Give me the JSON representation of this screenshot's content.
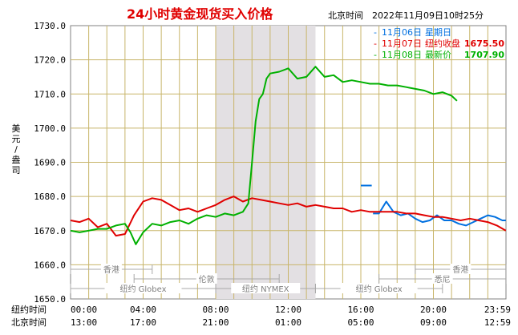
{
  "header": {
    "title": "24小时黄金现货买入价格",
    "location_time": "北京时间　2022年11月09日10时25分"
  },
  "legend": [
    {
      "dash": "-",
      "date": "11月06日",
      "label": "星期日",
      "value": "",
      "color": "#0070e0"
    },
    {
      "dash": "-",
      "date": "11月07日",
      "label": "纽约收盘",
      "value": "1675.50",
      "color": "#e00000"
    },
    {
      "dash": "-",
      "date": "11月08日",
      "label": "最新价",
      "value": "1707.90",
      "color": "#00b000"
    }
  ],
  "y_axis_label_chars": [
    "美",
    "元",
    "/",
    "盎",
    "司"
  ],
  "time_rows": [
    {
      "label": "纽约时间",
      "ticks": [
        "00:00",
        "04:00",
        "08:00",
        "12:00",
        "16:00",
        "20:00",
        "23:59"
      ]
    },
    {
      "label": "北京时间",
      "ticks": [
        "13:00",
        "17:00",
        "21:00",
        "01:00",
        "05:00",
        "09:00",
        "12:59"
      ]
    }
  ],
  "markets": [
    {
      "name": "香港",
      "start": 0,
      "end": 4.5,
      "row": 0
    },
    {
      "name": "伦敦",
      "start": 3.5,
      "end": 11.5,
      "row": 1
    },
    {
      "name": "纽约 Globex",
      "start": 0,
      "end": 8,
      "row": 2
    },
    {
      "name": "纽约 NYMEX",
      "start": 8,
      "end": 13.5,
      "row": 2
    },
    {
      "name": "纽约 Globex",
      "start": 13.5,
      "end": 20.5,
      "row": 2
    },
    {
      "name": "香港",
      "start": 19,
      "end": 23.99,
      "row": 0
    },
    {
      "name": "悉尼",
      "start": 17,
      "end": 23.99,
      "row": 1
    }
  ],
  "chart_data": {
    "type": "line",
    "title": "24小时黄金现货买入价格",
    "ylabel": "美元/盎司",
    "xlabel": "纽约时间",
    "xlim": [
      0,
      24
    ],
    "ylim": [
      1650,
      1730
    ],
    "yticks": [
      "1650.0",
      "1660.0",
      "1670.0",
      "1680.0",
      "1690.0",
      "1700.0",
      "1710.0",
      "1720.0",
      "1730.0"
    ],
    "highlight_band": [
      8,
      13.5
    ],
    "grid": true,
    "legend_position": "top-right",
    "series": [
      {
        "name": "11月06日",
        "color": "#0070e0",
        "x": [
          16.67,
          17.0,
          17.4,
          17.8,
          18.2,
          18.6,
          19.0,
          19.4,
          19.8,
          20.2,
          20.6,
          21.0,
          21.4,
          21.8,
          22.2,
          22.6,
          23.0,
          23.4,
          23.8,
          23.99
        ],
        "y": [
          1675.0,
          1675.0,
          1678.5,
          1675.5,
          1674.5,
          1675.0,
          1673.5,
          1672.5,
          1673.0,
          1674.5,
          1673.0,
          1673.0,
          1672.0,
          1671.5,
          1672.5,
          1673.5,
          1674.5,
          1674.0,
          1673.0,
          1673.0
        ],
        "segments": [
          {
            "x": [
              16.0,
              16.6
            ],
            "y": [
              1683.2,
              1683.2
            ]
          }
        ]
      },
      {
        "name": "11月07日",
        "color": "#e00000",
        "x": [
          0.0,
          0.5,
          1.0,
          1.5,
          2.0,
          2.5,
          3.0,
          3.5,
          4.0,
          4.5,
          5.0,
          5.5,
          6.0,
          6.5,
          7.0,
          7.5,
          8.0,
          8.5,
          9.0,
          9.5,
          10.0,
          10.5,
          11.0,
          11.5,
          12.0,
          12.5,
          13.0,
          13.5,
          14.0,
          14.5,
          15.0,
          15.5,
          16.0,
          16.5,
          17.0,
          17.5,
          18.0,
          18.5,
          19.0,
          19.5,
          20.0,
          20.5,
          21.0,
          21.5,
          22.0,
          22.5,
          23.0,
          23.5,
          23.99
        ],
        "y": [
          1673.0,
          1672.5,
          1673.5,
          1671.0,
          1672.0,
          1668.5,
          1669.0,
          1674.5,
          1678.5,
          1679.5,
          1679.0,
          1677.5,
          1676.0,
          1676.5,
          1675.5,
          1676.5,
          1677.5,
          1679.0,
          1680.0,
          1678.5,
          1679.5,
          1679.0,
          1678.5,
          1678.0,
          1677.5,
          1678.0,
          1677.0,
          1677.5,
          1677.0,
          1676.5,
          1676.5,
          1675.5,
          1676.0,
          1675.5,
          1675.5,
          1675.5,
          1675.5,
          1675.0,
          1675.0,
          1674.5,
          1674.0,
          1674.0,
          1673.5,
          1673.0,
          1673.5,
          1673.0,
          1672.5,
          1671.5,
          1670.0
        ]
      },
      {
        "name": "11月08日",
        "color": "#00b000",
        "x": [
          0.0,
          0.5,
          1.0,
          1.5,
          2.0,
          2.5,
          3.0,
          3.3,
          3.6,
          4.0,
          4.5,
          5.0,
          5.5,
          6.0,
          6.5,
          7.0,
          7.5,
          8.0,
          8.5,
          9.0,
          9.5,
          9.8,
          10.0,
          10.2,
          10.4,
          10.6,
          10.8,
          11.0,
          11.5,
          12.0,
          12.5,
          13.0,
          13.5,
          14.0,
          14.5,
          15.0,
          15.5,
          16.0,
          16.5,
          17.0,
          17.5,
          18.0,
          18.5,
          19.0,
          19.5,
          20.0,
          20.5,
          21.0,
          21.3
        ],
        "y": [
          1670.0,
          1669.5,
          1670.0,
          1670.5,
          1670.5,
          1671.5,
          1672.0,
          1669.5,
          1666.0,
          1669.5,
          1672.0,
          1671.5,
          1672.5,
          1673.0,
          1672.0,
          1673.5,
          1674.5,
          1674.0,
          1675.0,
          1674.5,
          1675.5,
          1678.0,
          1690.0,
          1702.0,
          1708.5,
          1710.0,
          1714.5,
          1716.0,
          1716.5,
          1717.5,
          1714.5,
          1715.0,
          1718.0,
          1715.0,
          1715.5,
          1713.5,
          1714.0,
          1713.5,
          1713.0,
          1713.0,
          1712.5,
          1712.5,
          1712.0,
          1711.5,
          1711.0,
          1710.0,
          1710.5,
          1709.5,
          1708.0
        ]
      }
    ]
  }
}
